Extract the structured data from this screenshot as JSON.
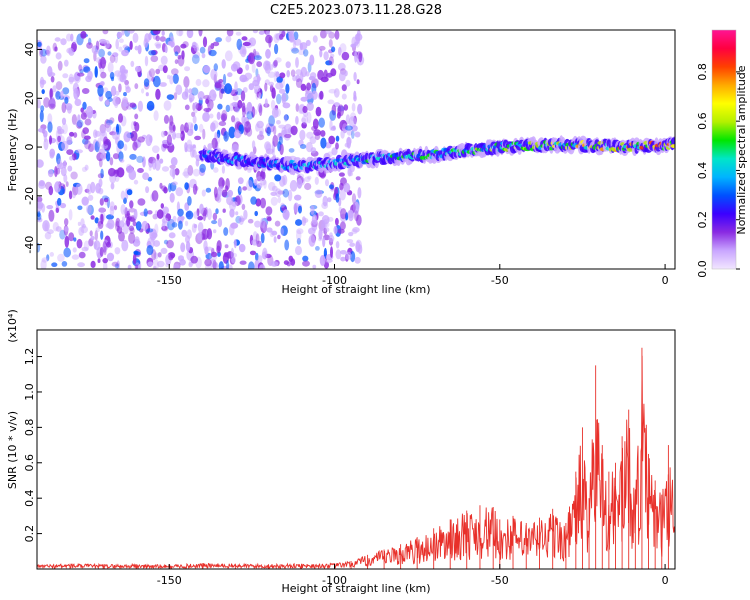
{
  "title": "C2E5.2023.073.11.28.G28",
  "chart_data": [
    {
      "type": "heatmap",
      "xlabel": "Height of straight line (km)",
      "ylabel": "Frequency (Hz)",
      "xlim": [
        -190,
        3
      ],
      "ylim": [
        -50,
        48
      ],
      "x_ticks": [
        -150,
        -100,
        -50,
        0
      ],
      "y_ticks": [
        -40,
        -20,
        0,
        20,
        40
      ],
      "colorbar": {
        "label": "Normalized spectral amplitude",
        "range": [
          0,
          0.97
        ],
        "ticks": [
          "0.0",
          "0.2",
          "0.4",
          "0.6",
          "0.8"
        ],
        "tick_values": [
          0,
          0.2,
          0.4,
          0.6,
          0.8
        ],
        "colors": [
          "#f2e6ff",
          "#c9a6ff",
          "#8a2be2",
          "#3b00ff",
          "#0050ff",
          "#00b4ff",
          "#00e6c8",
          "#00e600",
          "#b4f000",
          "#ffff00",
          "#ffaa00",
          "#ff4000",
          "#ff0040",
          "#ff1493"
        ]
      },
      "noise_region": {
        "x_from": -190,
        "x_to": -92
      },
      "ridge": [
        {
          "x": -140,
          "freq": -3,
          "amp": 0.35
        },
        {
          "x": -130,
          "freq": -5,
          "amp": 0.4
        },
        {
          "x": -110,
          "freq": -8,
          "amp": 0.45
        },
        {
          "x": -90,
          "freq": -5,
          "amp": 0.5
        },
        {
          "x": -70,
          "freq": -3,
          "amp": 0.55
        },
        {
          "x": -50,
          "freq": 0,
          "amp": 0.6
        },
        {
          "x": -30,
          "freq": 1,
          "amp": 0.7
        },
        {
          "x": -10,
          "freq": 0,
          "amp": 0.85
        },
        {
          "x": 3,
          "freq": 1,
          "amp": 0.9
        }
      ]
    },
    {
      "type": "line",
      "xlabel": "Height of straight line (km)",
      "ylabel": "SNR (10 * v/v)",
      "y_multiplier": "(x10⁴)",
      "xlim": [
        -190,
        3
      ],
      "ylim": [
        0,
        13500
      ],
      "x_ticks": [
        -150,
        -100,
        -50,
        0
      ],
      "y_ticks": [
        2000,
        4000,
        6000,
        8000,
        10000,
        12000
      ],
      "y_tick_labels": [
        "0.2",
        "0.4",
        "0.6",
        "0.8",
        "1.0",
        "1.2"
      ],
      "series": [
        {
          "color": "#e8302a",
          "x": [
            -190,
            -180,
            -170,
            -160,
            -150,
            -140,
            -130,
            -120,
            -110,
            -100,
            -95,
            -90,
            -85,
            -80,
            -75,
            -70,
            -65,
            -60,
            -56,
            -52,
            -50,
            -46,
            -42,
            -38,
            -34,
            -30,
            -27,
            -25,
            -23,
            -21,
            -19,
            -17,
            -15,
            -13,
            -11,
            -9,
            -7,
            -5,
            -3,
            -1,
            1,
            3
          ],
          "y": [
            250,
            300,
            260,
            280,
            240,
            330,
            300,
            270,
            300,
            320,
            450,
            800,
            1100,
            1400,
            1800,
            2300,
            2800,
            3300,
            3600,
            3500,
            2800,
            3000,
            2600,
            2900,
            3400,
            2600,
            5500,
            8000,
            4000,
            11500,
            7000,
            5500,
            6000,
            7500,
            9000,
            4500,
            12500,
            6500,
            5000,
            4200,
            7000,
            6800
          ]
        }
      ]
    }
  ]
}
